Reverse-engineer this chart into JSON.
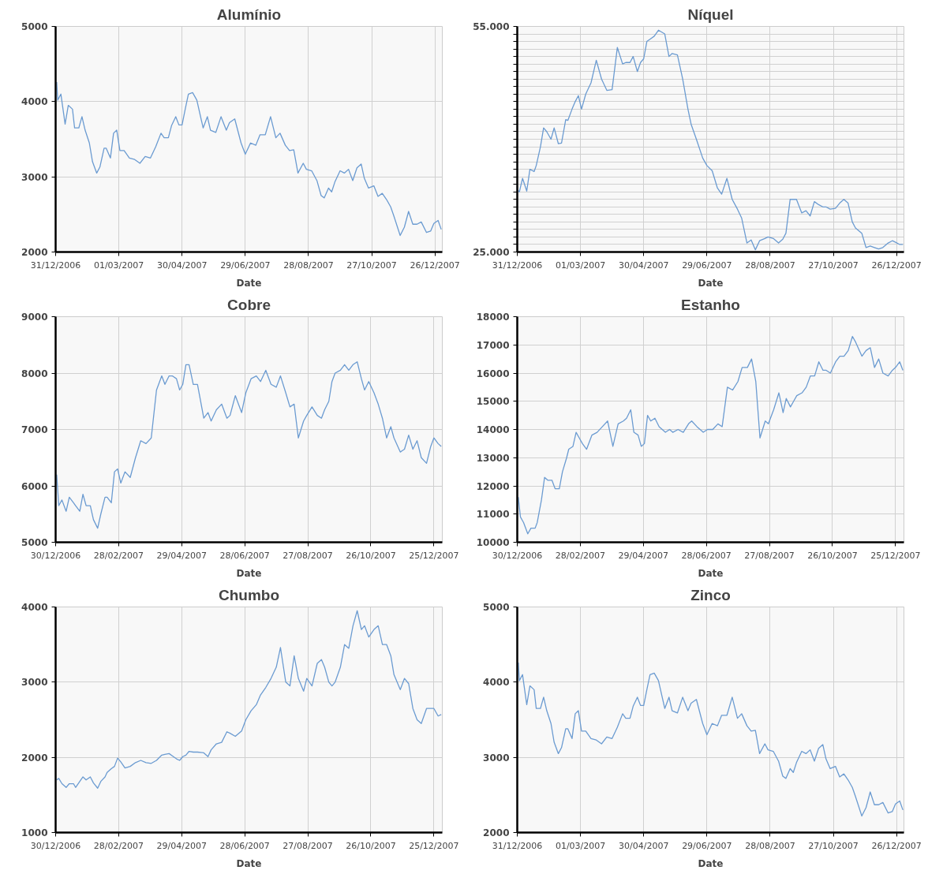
{
  "chart_data": [
    {
      "type": "line",
      "title": "Alumínio",
      "xlabel": "Date",
      "color": "#6b9bd1",
      "grid": true,
      "xlim": [
        "2006-12-31",
        "2008-01-02"
      ],
      "xticks": [
        {
          "value": "2006-12-31",
          "label": "31/12/2006"
        },
        {
          "value": "2007-03-01",
          "label": "01/03/2007"
        },
        {
          "value": "2007-04-30",
          "label": "30/04/2007"
        },
        {
          "value": "2007-06-29",
          "label": "29/06/2007"
        },
        {
          "value": "2007-08-28",
          "label": "28/08/2007"
        },
        {
          "value": "2007-10-27",
          "label": "27/10/2007"
        },
        {
          "value": "2007-12-26",
          "label": "26/12/2007"
        }
      ],
      "ylim": [
        2000,
        5000
      ],
      "yticks": [
        2000,
        3000,
        4000,
        5000
      ],
      "x": [
        "2007-01-01",
        "2007-01-02",
        "2007-01-05",
        "2007-01-09",
        "2007-01-12",
        "2007-01-16",
        "2007-01-18",
        "2007-01-22",
        "2007-01-25",
        "2007-01-28",
        "2007-02-01",
        "2007-02-04",
        "2007-02-08",
        "2007-02-11",
        "2007-02-15",
        "2007-02-17",
        "2007-02-21",
        "2007-02-24",
        "2007-02-27",
        "2007-03-02",
        "2007-03-06",
        "2007-03-11",
        "2007-03-16",
        "2007-03-21",
        "2007-03-26",
        "2007-03-31",
        "2007-04-05",
        "2007-04-10",
        "2007-04-13",
        "2007-04-17",
        "2007-04-20",
        "2007-04-24",
        "2007-04-27",
        "2007-04-30",
        "2007-05-03",
        "2007-05-06",
        "2007-05-10",
        "2007-05-14",
        "2007-05-20",
        "2007-05-24",
        "2007-05-27",
        "2007-06-01",
        "2007-06-06",
        "2007-06-11",
        "2007-06-14",
        "2007-06-19",
        "2007-06-25",
        "2007-06-29",
        "2007-07-04",
        "2007-07-09",
        "2007-07-13",
        "2007-07-18",
        "2007-07-23",
        "2007-07-28",
        "2007-08-01",
        "2007-08-06",
        "2007-08-10",
        "2007-08-14",
        "2007-08-18",
        "2007-08-23",
        "2007-08-26",
        "2007-08-31",
        "2007-09-05",
        "2007-09-09",
        "2007-09-12",
        "2007-09-16",
        "2007-09-19",
        "2007-09-22",
        "2007-09-27",
        "2007-10-01",
        "2007-10-05",
        "2007-10-09",
        "2007-10-13",
        "2007-10-17",
        "2007-10-20",
        "2007-10-24",
        "2007-10-29",
        "2007-11-02",
        "2007-11-06",
        "2007-11-10",
        "2007-11-14",
        "2007-11-17",
        "2007-11-23",
        "2007-11-27",
        "2007-12-01",
        "2007-12-05",
        "2007-12-09",
        "2007-12-13",
        "2007-12-18",
        "2007-12-22",
        "2007-12-25",
        "2007-12-29",
        "2008-01-01"
      ],
      "values": [
        4260,
        4020,
        4100,
        3700,
        3950,
        3900,
        3650,
        3650,
        3800,
        3620,
        3450,
        3200,
        3050,
        3130,
        3380,
        3380,
        3250,
        3580,
        3620,
        3350,
        3350,
        3250,
        3230,
        3180,
        3270,
        3250,
        3400,
        3580,
        3520,
        3520,
        3680,
        3800,
        3690,
        3690,
        3900,
        4100,
        4120,
        4020,
        3650,
        3800,
        3620,
        3590,
        3800,
        3620,
        3720,
        3770,
        3450,
        3300,
        3450,
        3420,
        3560,
        3560,
        3800,
        3520,
        3580,
        3420,
        3350,
        3360,
        3050,
        3180,
        3100,
        3080,
        2950,
        2750,
        2720,
        2850,
        2800,
        2930,
        3080,
        3050,
        3100,
        2950,
        3120,
        3170,
        2980,
        2850,
        2880,
        2740,
        2780,
        2700,
        2600,
        2480,
        2220,
        2330,
        2540,
        2370,
        2370,
        2400,
        2260,
        2280,
        2380,
        2420,
        2300
      ]
    },
    {
      "type": "line",
      "title": "Níquel",
      "xlabel": "Date",
      "color": "#6b9bd1",
      "grid": true,
      "xlim": [
        "2006-12-31",
        "2008-01-02"
      ],
      "xticks": [
        {
          "value": "2006-12-31",
          "label": "31/12/2006"
        },
        {
          "value": "2007-03-01",
          "label": "01/03/2007"
        },
        {
          "value": "2007-04-30",
          "label": "30/04/2007"
        },
        {
          "value": "2007-06-29",
          "label": "29/06/2007"
        },
        {
          "value": "2007-08-28",
          "label": "28/08/2007"
        },
        {
          "value": "2007-10-27",
          "label": "27/10/2007"
        },
        {
          "value": "2007-12-26",
          "label": "26/12/2007"
        }
      ],
      "ylim": [
        25000,
        55000
      ],
      "yticks": [
        {
          "value": 25000,
          "label": "25.000"
        },
        {
          "value": 26000,
          "label": null
        },
        {
          "value": 27000,
          "label": null
        },
        {
          "value": 28000,
          "label": null
        },
        {
          "value": 29000,
          "label": null
        },
        {
          "value": 30000,
          "label": null
        },
        {
          "value": 31000,
          "label": null
        },
        {
          "value": 32000,
          "label": null
        },
        {
          "value": 33000,
          "label": null
        },
        {
          "value": 34000,
          "label": null
        },
        {
          "value": 35000,
          "label": null
        },
        {
          "value": 36000,
          "label": null
        },
        {
          "value": 37000,
          "label": null
        },
        {
          "value": 38000,
          "label": null
        },
        {
          "value": 39000,
          "label": null
        },
        {
          "value": 40000,
          "label": null
        },
        {
          "value": 41000,
          "label": null
        },
        {
          "value": 42000,
          "label": null
        },
        {
          "value": 43000,
          "label": null
        },
        {
          "value": 44000,
          "label": null
        },
        {
          "value": 45000,
          "label": null
        },
        {
          "value": 46000,
          "label": null
        },
        {
          "value": 47000,
          "label": null
        },
        {
          "value": 48000,
          "label": null
        },
        {
          "value": 49000,
          "label": null
        },
        {
          "value": 50000,
          "label": null
        },
        {
          "value": 51000,
          "label": null
        },
        {
          "value": 52000,
          "label": null
        },
        {
          "value": 53000,
          "label": null
        },
        {
          "value": 54000,
          "label": null
        },
        {
          "value": 55000,
          "label": "55.000"
        }
      ],
      "x": [
        "2006-12-31",
        "2007-01-02",
        "2007-01-05",
        "2007-01-09",
        "2007-01-12",
        "2007-01-16",
        "2007-01-18",
        "2007-01-22",
        "2007-01-25",
        "2007-01-28",
        "2007-02-01",
        "2007-02-04",
        "2007-02-08",
        "2007-02-11",
        "2007-02-15",
        "2007-02-17",
        "2007-02-21",
        "2007-02-24",
        "2007-02-27",
        "2007-03-02",
        "2007-03-06",
        "2007-03-11",
        "2007-03-16",
        "2007-03-21",
        "2007-03-26",
        "2007-03-31",
        "2007-04-05",
        "2007-04-10",
        "2007-04-13",
        "2007-04-17",
        "2007-04-20",
        "2007-04-24",
        "2007-04-27",
        "2007-04-30",
        "2007-05-03",
        "2007-05-06",
        "2007-05-10",
        "2007-05-14",
        "2007-05-20",
        "2007-05-24",
        "2007-05-27",
        "2007-06-01",
        "2007-06-06",
        "2007-06-11",
        "2007-06-14",
        "2007-06-19",
        "2007-06-25",
        "2007-06-29",
        "2007-07-04",
        "2007-07-09",
        "2007-07-13",
        "2007-07-18",
        "2007-07-23",
        "2007-07-28",
        "2007-08-01",
        "2007-08-06",
        "2007-08-10",
        "2007-08-14",
        "2007-08-18",
        "2007-08-23",
        "2007-08-26",
        "2007-08-31",
        "2007-09-05",
        "2007-09-09",
        "2007-09-12",
        "2007-09-16",
        "2007-09-19",
        "2007-09-22",
        "2007-09-27",
        "2007-10-01",
        "2007-10-05",
        "2007-10-09",
        "2007-10-13",
        "2007-10-17",
        "2007-10-20",
        "2007-10-24",
        "2007-10-29",
        "2007-11-02",
        "2007-11-06",
        "2007-11-10",
        "2007-11-14",
        "2007-11-17",
        "2007-11-23",
        "2007-11-27",
        "2007-12-01",
        "2007-12-05",
        "2007-12-09",
        "2007-12-13",
        "2007-12-18",
        "2007-12-22",
        "2007-12-25",
        "2007-12-29",
        "2008-01-01"
      ],
      "values": [
        33300,
        33000,
        34800,
        33100,
        36000,
        35700,
        36500,
        39000,
        41500,
        41000,
        40000,
        41500,
        39400,
        39500,
        42600,
        42500,
        44000,
        45000,
        45800,
        44000,
        46000,
        47500,
        50500,
        48000,
        46500,
        46600,
        52200,
        50000,
        50200,
        50200,
        51000,
        49000,
        50200,
        50700,
        53000,
        53300,
        53700,
        54500,
        54000,
        51000,
        51400,
        51200,
        48000,
        44000,
        42000,
        40000,
        37500,
        36500,
        35800,
        33500,
        32700,
        34800,
        32000,
        30700,
        29500,
        26200,
        26600,
        25300,
        26500,
        26800,
        27000,
        26800,
        26200,
        26700,
        27500,
        32000,
        32000,
        32000,
        30200,
        30500,
        29800,
        31700,
        31300,
        31000,
        31000,
        30700,
        30800,
        31500,
        32000,
        31500,
        29000,
        28200,
        27500,
        25600,
        25800,
        25600,
        25400,
        25600,
        26200,
        26500,
        26300,
        26000,
        26000
      ]
    },
    {
      "type": "line",
      "title": "Cobre",
      "xlabel": "Date",
      "color": "#6b9bd1",
      "grid": true,
      "xlim": [
        "2006-12-30",
        "2008-01-02"
      ],
      "xticks": [
        {
          "value": "2006-12-30",
          "label": "30/12/2006"
        },
        {
          "value": "2007-02-28",
          "label": "28/02/2007"
        },
        {
          "value": "2007-04-29",
          "label": "29/04/2007"
        },
        {
          "value": "2007-06-28",
          "label": "28/06/2007"
        },
        {
          "value": "2007-08-27",
          "label": "27/08/2007"
        },
        {
          "value": "2007-10-26",
          "label": "26/10/2007"
        },
        {
          "value": "2007-12-25",
          "label": "25/12/2007"
        }
      ],
      "ylim": [
        5000,
        9000
      ],
      "yticks": [
        5000,
        6000,
        7000,
        8000,
        9000
      ],
      "x": [
        "2006-12-31",
        "2007-01-02",
        "2007-01-05",
        "2007-01-09",
        "2007-01-12",
        "2007-01-16",
        "2007-01-18",
        "2007-01-22",
        "2007-01-25",
        "2007-01-28",
        "2007-02-01",
        "2007-02-04",
        "2007-02-08",
        "2007-02-11",
        "2007-02-15",
        "2007-02-17",
        "2007-02-21",
        "2007-02-24",
        "2007-02-27",
        "2007-03-02",
        "2007-03-06",
        "2007-03-11",
        "2007-03-16",
        "2007-03-21",
        "2007-03-26",
        "2007-03-31",
        "2007-04-05",
        "2007-04-10",
        "2007-04-13",
        "2007-04-17",
        "2007-04-20",
        "2007-04-24",
        "2007-04-27",
        "2007-04-30",
        "2007-05-03",
        "2007-05-06",
        "2007-05-10",
        "2007-05-14",
        "2007-05-20",
        "2007-05-24",
        "2007-05-27",
        "2007-06-01",
        "2007-06-06",
        "2007-06-11",
        "2007-06-14",
        "2007-06-19",
        "2007-06-25",
        "2007-06-29",
        "2007-07-04",
        "2007-07-09",
        "2007-07-13",
        "2007-07-18",
        "2007-07-23",
        "2007-07-28",
        "2007-08-01",
        "2007-08-06",
        "2007-08-10",
        "2007-08-14",
        "2007-08-18",
        "2007-08-23",
        "2007-08-26",
        "2007-08-31",
        "2007-09-05",
        "2007-09-09",
        "2007-09-12",
        "2007-09-16",
        "2007-09-19",
        "2007-09-22",
        "2007-09-27",
        "2007-10-01",
        "2007-10-05",
        "2007-10-09",
        "2007-10-13",
        "2007-10-17",
        "2007-10-20",
        "2007-10-24",
        "2007-10-29",
        "2007-11-02",
        "2007-11-06",
        "2007-11-10",
        "2007-11-14",
        "2007-11-17",
        "2007-11-23",
        "2007-11-27",
        "2007-12-01",
        "2007-12-05",
        "2007-12-09",
        "2007-12-13",
        "2007-12-18",
        "2007-12-22",
        "2007-12-25",
        "2007-12-29",
        "2008-01-01"
      ],
      "values": [
        6200,
        5650,
        5750,
        5550,
        5800,
        5700,
        5650,
        5550,
        5850,
        5650,
        5650,
        5400,
        5250,
        5500,
        5800,
        5800,
        5700,
        6250,
        6300,
        6050,
        6250,
        6150,
        6500,
        6800,
        6750,
        6850,
        7700,
        7950,
        7800,
        7950,
        7950,
        7900,
        7700,
        7800,
        8150,
        8150,
        7800,
        7800,
        7200,
        7300,
        7150,
        7350,
        7450,
        7200,
        7250,
        7600,
        7300,
        7650,
        7900,
        7950,
        7850,
        8050,
        7800,
        7750,
        7950,
        7650,
        7400,
        7450,
        6850,
        7150,
        7250,
        7400,
        7250,
        7200,
        7350,
        7500,
        7850,
        8000,
        8050,
        8150,
        8050,
        8150,
        8200,
        7900,
        7700,
        7850,
        7650,
        7450,
        7200,
        6850,
        7050,
        6850,
        6600,
        6650,
        6900,
        6650,
        6800,
        6500,
        6400,
        6700,
        6850,
        6750,
        6700
      ]
    },
    {
      "type": "line",
      "title": "Estanho",
      "xlabel": "Date",
      "color": "#6b9bd1",
      "grid": true,
      "xlim": [
        "2006-12-30",
        "2008-01-02"
      ],
      "xticks": [
        {
          "value": "2006-12-30",
          "label": "30/12/2006"
        },
        {
          "value": "2007-02-28",
          "label": "28/02/2007"
        },
        {
          "value": "2007-04-29",
          "label": "29/04/2007"
        },
        {
          "value": "2007-06-28",
          "label": "28/06/2007"
        },
        {
          "value": "2007-08-27",
          "label": "27/08/2007"
        },
        {
          "value": "2007-10-26",
          "label": "26/10/2007"
        },
        {
          "value": "2007-12-25",
          "label": "25/12/2007"
        }
      ],
      "ylim": [
        10000,
        18000
      ],
      "yticks": [
        10000,
        11000,
        12000,
        13000,
        14000,
        15000,
        16000,
        17000,
        18000
      ],
      "x": [
        "2006-12-31",
        "2007-01-02",
        "2007-01-05",
        "2007-01-09",
        "2007-01-12",
        "2007-01-16",
        "2007-01-18",
        "2007-01-22",
        "2007-01-25",
        "2007-01-28",
        "2007-02-01",
        "2007-02-04",
        "2007-02-08",
        "2007-02-11",
        "2007-02-15",
        "2007-02-17",
        "2007-02-21",
        "2007-02-24",
        "2007-02-27",
        "2007-03-02",
        "2007-03-06",
        "2007-03-11",
        "2007-03-16",
        "2007-03-21",
        "2007-03-26",
        "2007-03-31",
        "2007-04-05",
        "2007-04-10",
        "2007-04-13",
        "2007-04-17",
        "2007-04-20",
        "2007-04-24",
        "2007-04-27",
        "2007-04-30",
        "2007-05-03",
        "2007-05-06",
        "2007-05-10",
        "2007-05-14",
        "2007-05-20",
        "2007-05-24",
        "2007-05-27",
        "2007-06-01",
        "2007-06-06",
        "2007-06-11",
        "2007-06-14",
        "2007-06-19",
        "2007-06-25",
        "2007-06-29",
        "2007-07-04",
        "2007-07-09",
        "2007-07-13",
        "2007-07-18",
        "2007-07-23",
        "2007-07-28",
        "2007-08-01",
        "2007-08-06",
        "2007-08-10",
        "2007-08-14",
        "2007-08-18",
        "2007-08-23",
        "2007-08-26",
        "2007-08-31",
        "2007-09-05",
        "2007-09-09",
        "2007-09-12",
        "2007-09-16",
        "2007-09-19",
        "2007-09-22",
        "2007-09-27",
        "2007-10-01",
        "2007-10-05",
        "2007-10-09",
        "2007-10-13",
        "2007-10-17",
        "2007-10-20",
        "2007-10-24",
        "2007-10-29",
        "2007-11-02",
        "2007-11-06",
        "2007-11-10",
        "2007-11-14",
        "2007-11-17",
        "2007-11-23",
        "2007-11-27",
        "2007-12-01",
        "2007-12-05",
        "2007-12-09",
        "2007-12-13",
        "2007-12-18",
        "2007-12-22",
        "2007-12-25",
        "2007-12-29",
        "2008-01-01"
      ],
      "values": [
        11600,
        10900,
        10700,
        10300,
        10500,
        10500,
        10700,
        11500,
        12300,
        12200,
        12200,
        11900,
        11900,
        12500,
        13000,
        13300,
        13400,
        13900,
        13700,
        13500,
        13300,
        13800,
        13900,
        14100,
        14300,
        13400,
        14200,
        14300,
        14400,
        14700,
        13900,
        13800,
        13400,
        13500,
        14500,
        14300,
        14400,
        14100,
        13900,
        14000,
        13900,
        14000,
        13900,
        14200,
        14300,
        14100,
        13900,
        14000,
        14000,
        14200,
        14100,
        15500,
        15400,
        15700,
        16200,
        16200,
        16500,
        15700,
        13700,
        14300,
        14200,
        14700,
        15300,
        14600,
        15100,
        14800,
        15000,
        15200,
        15300,
        15500,
        15900,
        15900,
        16400,
        16100,
        16100,
        16000,
        16400,
        16600,
        16600,
        16800,
        17300,
        17100,
        16600,
        16800,
        16900,
        16200,
        16500,
        16000,
        15900,
        16100,
        16200,
        16400,
        16100
      ]
    },
    {
      "type": "line",
      "title": "Chumbo",
      "xlabel": "Date",
      "color": "#6b9bd1",
      "grid": true,
      "xlim": [
        "2006-12-30",
        "2008-01-02"
      ],
      "xticks": [
        {
          "value": "2006-12-30",
          "label": "30/12/2006"
        },
        {
          "value": "2007-02-28",
          "label": "28/02/2007"
        },
        {
          "value": "2007-04-29",
          "label": "29/04/2007"
        },
        {
          "value": "2007-06-28",
          "label": "28/06/2007"
        },
        {
          "value": "2007-08-27",
          "label": "27/08/2007"
        },
        {
          "value": "2007-10-26",
          "label": "26/10/2007"
        },
        {
          "value": "2007-12-25",
          "label": "25/12/2007"
        }
      ],
      "ylim": [
        1000,
        4000
      ],
      "yticks": [
        1000,
        2000,
        3000,
        4000
      ],
      "x": [
        "2006-12-31",
        "2007-01-02",
        "2007-01-05",
        "2007-01-09",
        "2007-01-12",
        "2007-01-16",
        "2007-01-18",
        "2007-01-22",
        "2007-01-25",
        "2007-01-28",
        "2007-02-01",
        "2007-02-04",
        "2007-02-08",
        "2007-02-11",
        "2007-02-15",
        "2007-02-17",
        "2007-02-21",
        "2007-02-24",
        "2007-02-27",
        "2007-03-02",
        "2007-03-06",
        "2007-03-11",
        "2007-03-16",
        "2007-03-21",
        "2007-03-26",
        "2007-03-31",
        "2007-04-05",
        "2007-04-10",
        "2007-04-13",
        "2007-04-17",
        "2007-04-20",
        "2007-04-24",
        "2007-04-27",
        "2007-04-30",
        "2007-05-03",
        "2007-05-06",
        "2007-05-10",
        "2007-05-14",
        "2007-05-20",
        "2007-05-24",
        "2007-05-27",
        "2007-06-01",
        "2007-06-06",
        "2007-06-11",
        "2007-06-14",
        "2007-06-19",
        "2007-06-25",
        "2007-06-29",
        "2007-07-04",
        "2007-07-09",
        "2007-07-13",
        "2007-07-18",
        "2007-07-23",
        "2007-07-28",
        "2007-08-01",
        "2007-08-06",
        "2007-08-10",
        "2007-08-14",
        "2007-08-18",
        "2007-08-23",
        "2007-08-26",
        "2007-08-31",
        "2007-09-05",
        "2007-09-09",
        "2007-09-12",
        "2007-09-16",
        "2007-09-19",
        "2007-09-22",
        "2007-09-27",
        "2007-10-01",
        "2007-10-05",
        "2007-10-09",
        "2007-10-13",
        "2007-10-17",
        "2007-10-20",
        "2007-10-24",
        "2007-10-29",
        "2007-11-02",
        "2007-11-06",
        "2007-11-10",
        "2007-11-14",
        "2007-11-17",
        "2007-11-23",
        "2007-11-27",
        "2007-12-01",
        "2007-12-05",
        "2007-12-09",
        "2007-12-13",
        "2007-12-18",
        "2007-12-22",
        "2007-12-25",
        "2007-12-29",
        "2008-01-01"
      ],
      "values": [
        1700,
        1720,
        1650,
        1600,
        1650,
        1650,
        1600,
        1680,
        1740,
        1700,
        1740,
        1660,
        1590,
        1680,
        1740,
        1800,
        1850,
        1880,
        1990,
        1940,
        1860,
        1880,
        1930,
        1960,
        1930,
        1920,
        1960,
        2030,
        2040,
        2050,
        2020,
        1980,
        1960,
        2010,
        2030,
        2080,
        2070,
        2070,
        2060,
        2010,
        2100,
        2180,
        2200,
        2340,
        2320,
        2280,
        2350,
        2500,
        2620,
        2700,
        2830,
        2930,
        3050,
        3200,
        3460,
        3000,
        2950,
        3350,
        3050,
        2880,
        3050,
        2950,
        3250,
        3300,
        3200,
        3000,
        2950,
        3000,
        3200,
        3500,
        3450,
        3750,
        3950,
        3700,
        3750,
        3600,
        3700,
        3750,
        3500,
        3500,
        3350,
        3100,
        2900,
        3050,
        2980,
        2650,
        2500,
        2450,
        2650,
        2650,
        2650,
        2550,
        2570
      ]
    },
    {
      "type": "line",
      "title": "Zinco",
      "xlabel": "Date",
      "color": "#6b9bd1",
      "grid": true,
      "xlim": [
        "2006-12-31",
        "2008-01-02"
      ],
      "xticks": [
        {
          "value": "2006-12-31",
          "label": "31/12/2006"
        },
        {
          "value": "2007-03-01",
          "label": "01/03/2007"
        },
        {
          "value": "2007-04-30",
          "label": "30/04/2007"
        },
        {
          "value": "2007-06-29",
          "label": "29/06/2007"
        },
        {
          "value": "2007-08-28",
          "label": "28/08/2007"
        },
        {
          "value": "2007-10-27",
          "label": "27/10/2007"
        },
        {
          "value": "2007-12-26",
          "label": "26/12/2007"
        }
      ],
      "ylim": [
        2000,
        5000
      ],
      "yticks": [
        2000,
        3000,
        4000,
        5000
      ],
      "x": [
        "2007-01-01",
        "2007-01-02",
        "2007-01-05",
        "2007-01-09",
        "2007-01-12",
        "2007-01-16",
        "2007-01-18",
        "2007-01-22",
        "2007-01-25",
        "2007-01-28",
        "2007-02-01",
        "2007-02-04",
        "2007-02-08",
        "2007-02-11",
        "2007-02-15",
        "2007-02-17",
        "2007-02-21",
        "2007-02-24",
        "2007-02-27",
        "2007-03-02",
        "2007-03-06",
        "2007-03-11",
        "2007-03-16",
        "2007-03-21",
        "2007-03-26",
        "2007-03-31",
        "2007-04-05",
        "2007-04-10",
        "2007-04-13",
        "2007-04-17",
        "2007-04-20",
        "2007-04-24",
        "2007-04-27",
        "2007-04-30",
        "2007-05-03",
        "2007-05-06",
        "2007-05-10",
        "2007-05-14",
        "2007-05-20",
        "2007-05-24",
        "2007-05-27",
        "2007-06-01",
        "2007-06-06",
        "2007-06-11",
        "2007-06-14",
        "2007-06-19",
        "2007-06-25",
        "2007-06-29",
        "2007-07-04",
        "2007-07-09",
        "2007-07-13",
        "2007-07-18",
        "2007-07-23",
        "2007-07-28",
        "2007-08-01",
        "2007-08-06",
        "2007-08-10",
        "2007-08-14",
        "2007-08-18",
        "2007-08-23",
        "2007-08-26",
        "2007-08-31",
        "2007-09-05",
        "2007-09-09",
        "2007-09-12",
        "2007-09-16",
        "2007-09-19",
        "2007-09-22",
        "2007-09-27",
        "2007-10-01",
        "2007-10-05",
        "2007-10-09",
        "2007-10-13",
        "2007-10-17",
        "2007-10-20",
        "2007-10-24",
        "2007-10-29",
        "2007-11-02",
        "2007-11-06",
        "2007-11-10",
        "2007-11-14",
        "2007-11-17",
        "2007-11-23",
        "2007-11-27",
        "2007-12-01",
        "2007-12-05",
        "2007-12-09",
        "2007-12-13",
        "2007-12-18",
        "2007-12-22",
        "2007-12-25",
        "2007-12-29",
        "2008-01-01"
      ],
      "values": [
        4260,
        4020,
        4100,
        3700,
        3950,
        3900,
        3650,
        3650,
        3800,
        3620,
        3450,
        3200,
        3050,
        3130,
        3380,
        3380,
        3250,
        3580,
        3620,
        3350,
        3350,
        3250,
        3230,
        3180,
        3270,
        3250,
        3400,
        3580,
        3520,
        3520,
        3680,
        3800,
        3690,
        3690,
        3900,
        4100,
        4120,
        4020,
        3650,
        3800,
        3620,
        3590,
        3800,
        3620,
        3720,
        3770,
        3450,
        3300,
        3450,
        3420,
        3560,
        3560,
        3800,
        3520,
        3580,
        3420,
        3350,
        3360,
        3050,
        3180,
        3100,
        3080,
        2950,
        2750,
        2720,
        2850,
        2800,
        2930,
        3080,
        3050,
        3100,
        2950,
        3120,
        3170,
        2980,
        2850,
        2880,
        2740,
        2780,
        2700,
        2600,
        2480,
        2220,
        2330,
        2540,
        2370,
        2370,
        2400,
        2260,
        2280,
        2380,
        2420,
        2300
      ]
    }
  ]
}
